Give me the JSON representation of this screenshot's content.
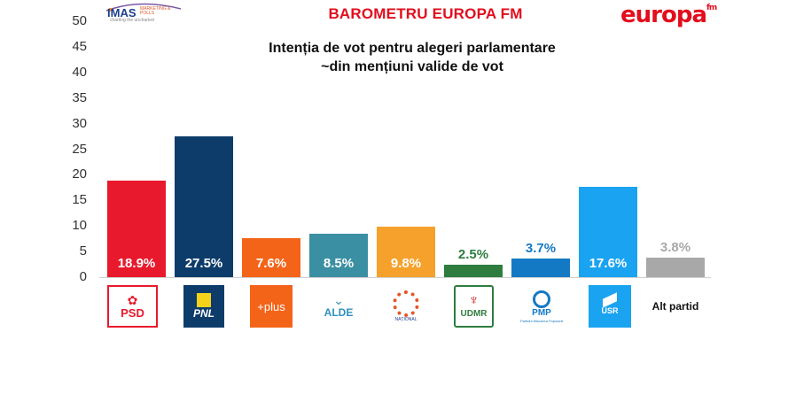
{
  "header": {
    "brand_left": "IMAS",
    "brand_left_sub": "MARKETING & POLLS",
    "brand_left_tagline": "charting the uncharted",
    "title": "BAROMETRU EUROPA FM",
    "brand_right": "europa",
    "brand_right_sub": "fm"
  },
  "chart_data": {
    "type": "bar",
    "title": "Intenția de vot pentru alegeri parlamentare",
    "subtitle": "~din mențiuni valide de vot",
    "xlabel": "",
    "ylabel": "",
    "ylim": [
      0,
      50
    ],
    "yticks": [
      0,
      5,
      10,
      15,
      20,
      25,
      30,
      35,
      40,
      45,
      50
    ],
    "grid": false,
    "legend": "none",
    "categories": [
      "PSD",
      "PNL",
      "PLUS",
      "ALDE",
      "PRO România",
      "UDMR",
      "PMP",
      "USR",
      "Alt partid"
    ],
    "values": [
      18.9,
      27.5,
      7.6,
      8.5,
      9.8,
      2.5,
      3.7,
      17.6,
      3.8
    ],
    "value_labels": [
      "18.9%",
      "27.5%",
      "7.6%",
      "8.5%",
      "9.8%",
      "2.5%",
      "3.7%",
      "17.6%",
      "3.8%"
    ],
    "colors": [
      "#e8192c",
      "#0d3c6b",
      "#f36418",
      "#3a8fa3",
      "#f5a12b",
      "#2e7d3f",
      "#1479c4",
      "#1aa3f0",
      "#a8a8a8"
    ]
  },
  "logos": [
    {
      "name": "PSD",
      "text": "PSD"
    },
    {
      "name": "PNL",
      "text": "PNL"
    },
    {
      "name": "PLUS",
      "text": "+plus"
    },
    {
      "name": "ALDE",
      "text": "ALDE"
    },
    {
      "name": "PRO România",
      "text": "PRO România",
      "sub": "NAȚIONAL"
    },
    {
      "name": "UDMR",
      "text": "UDMR"
    },
    {
      "name": "PMP",
      "text": "PMP",
      "sub": "Partidul Mișcarea Populară"
    },
    {
      "name": "USR",
      "text": "USR"
    },
    {
      "name": "Alt partid",
      "text": "Alt partid"
    }
  ]
}
